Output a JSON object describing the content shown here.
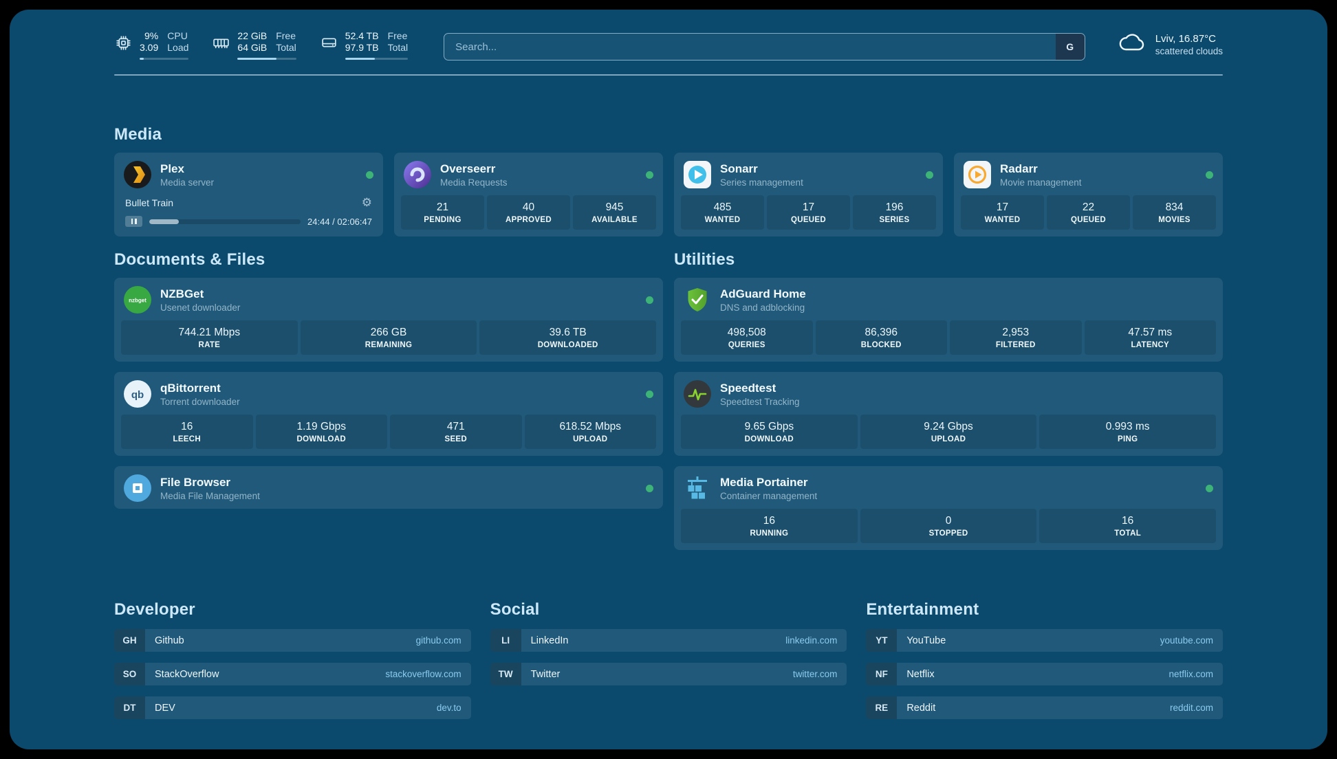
{
  "colors": {
    "background": "#0b4a6d",
    "status_green": "#3db378",
    "link_blue": "#8ccaef",
    "heading_blue": "#cde9f9"
  },
  "icons": {
    "gear": "⚙",
    "nzbget": "nzbget",
    "qbittorrent": "qb"
  },
  "topbar": {
    "resources": [
      {
        "values": [
          "9%",
          "3.09"
        ],
        "labels": [
          "CPU",
          "Load"
        ],
        "percent": 9
      },
      {
        "values": [
          "22 GiB",
          "64 GiB"
        ],
        "labels": [
          "Free",
          "Total"
        ],
        "percent": 66
      },
      {
        "values": [
          "52.4 TB",
          "97.9 TB"
        ],
        "labels": [
          "Free",
          "Total"
        ],
        "percent": 47
      }
    ],
    "search": {
      "placeholder": "Search...",
      "button_label": "G"
    },
    "weather": {
      "location": "Lviv, 16.87°C",
      "condition": "scattered clouds"
    }
  },
  "sections": {
    "media": {
      "title": "Media",
      "plex": {
        "name": "Plex",
        "subtitle": "Media server",
        "now_playing": "Bullet Train",
        "time": "24:44 / 02:06:47",
        "progress_percent": 19.5
      },
      "overseerr": {
        "name": "Overseerr",
        "subtitle": "Media Requests",
        "stats": [
          {
            "value": "21",
            "label": "PENDING"
          },
          {
            "value": "40",
            "label": "APPROVED"
          },
          {
            "value": "945",
            "label": "AVAILABLE"
          }
        ]
      },
      "sonarr": {
        "name": "Sonarr",
        "subtitle": "Series management",
        "stats": [
          {
            "value": "485",
            "label": "WANTED"
          },
          {
            "value": "17",
            "label": "QUEUED"
          },
          {
            "value": "196",
            "label": "SERIES"
          }
        ]
      },
      "radarr": {
        "name": "Radarr",
        "subtitle": "Movie management",
        "stats": [
          {
            "value": "17",
            "label": "WANTED"
          },
          {
            "value": "22",
            "label": "QUEUED"
          },
          {
            "value": "834",
            "label": "MOVIES"
          }
        ]
      }
    },
    "documents": {
      "title": "Documents & Files",
      "nzbget": {
        "name": "NZBGet",
        "subtitle": "Usenet downloader",
        "stats": [
          {
            "value": "744.21 Mbps",
            "label": "RATE"
          },
          {
            "value": "266 GB",
            "label": "REMAINING"
          },
          {
            "value": "39.6 TB",
            "label": "DOWNLOADED"
          }
        ]
      },
      "qbittorrent": {
        "name": "qBittorrent",
        "subtitle": "Torrent downloader",
        "stats": [
          {
            "value": "16",
            "label": "LEECH"
          },
          {
            "value": "1.19 Gbps",
            "label": "DOWNLOAD"
          },
          {
            "value": "471",
            "label": "SEED"
          },
          {
            "value": "618.52 Mbps",
            "label": "UPLOAD"
          }
        ]
      },
      "filebrowser": {
        "name": "File Browser",
        "subtitle": "Media File Management"
      }
    },
    "utilities": {
      "title": "Utilities",
      "adguard": {
        "name": "AdGuard Home",
        "subtitle": "DNS and adblocking",
        "stats": [
          {
            "value": "498,508",
            "label": "QUERIES"
          },
          {
            "value": "86,396",
            "label": "BLOCKED"
          },
          {
            "value": "2,953",
            "label": "FILTERED"
          },
          {
            "value": "47.57 ms",
            "label": "LATENCY"
          }
        ]
      },
      "speedtest": {
        "name": "Speedtest",
        "subtitle": "Speedtest Tracking",
        "stats": [
          {
            "value": "9.65 Gbps",
            "label": "DOWNLOAD"
          },
          {
            "value": "9.24 Gbps",
            "label": "UPLOAD"
          },
          {
            "value": "0.993 ms",
            "label": "PING"
          }
        ]
      },
      "portainer": {
        "name": "Media Portainer",
        "subtitle": "Container management",
        "stats": [
          {
            "value": "16",
            "label": "RUNNING"
          },
          {
            "value": "0",
            "label": "STOPPED"
          },
          {
            "value": "16",
            "label": "TOTAL"
          }
        ]
      }
    },
    "bookmarks": {
      "developer": {
        "title": "Developer",
        "items": [
          {
            "abbr": "GH",
            "name": "Github",
            "domain": "github.com"
          },
          {
            "abbr": "SO",
            "name": "StackOverflow",
            "domain": "stackoverflow.com"
          },
          {
            "abbr": "DT",
            "name": "DEV",
            "domain": "dev.to"
          }
        ]
      },
      "social": {
        "title": "Social",
        "items": [
          {
            "abbr": "LI",
            "name": "LinkedIn",
            "domain": "linkedin.com"
          },
          {
            "abbr": "TW",
            "name": "Twitter",
            "domain": "twitter.com"
          }
        ]
      },
      "entertainment": {
        "title": "Entertainment",
        "items": [
          {
            "abbr": "YT",
            "name": "YouTube",
            "domain": "youtube.com"
          },
          {
            "abbr": "NF",
            "name": "Netflix",
            "domain": "netflix.com"
          },
          {
            "abbr": "RE",
            "name": "Reddit",
            "domain": "reddit.com"
          }
        ]
      }
    }
  }
}
